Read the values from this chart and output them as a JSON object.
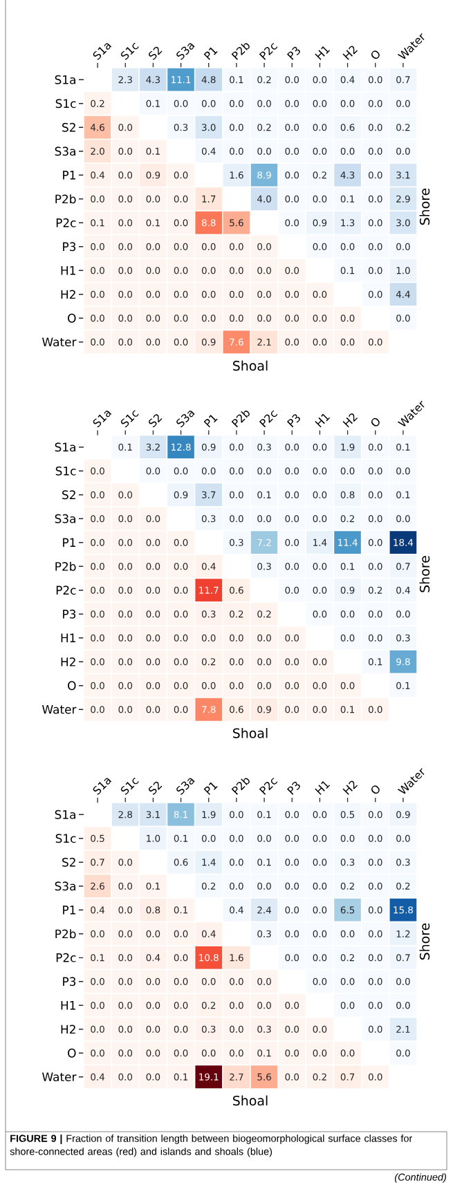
{
  "chart_data": [
    {
      "type": "heatmap",
      "xlabel": "Shoal",
      "ylabel": "Shore",
      "categories": [
        "S1a",
        "S1c",
        "S2",
        "S3a",
        "P1",
        "P2b",
        "P2c",
        "P3",
        "H1",
        "H2",
        "O",
        "Water"
      ],
      "y_categories": [
        "S1a",
        "S1c",
        "S2",
        "S3a",
        "P1",
        "P2b",
        "P2c",
        "P3",
        "H1",
        "H2",
        "O",
        "Water"
      ],
      "cells": [
        [
          null,
          2.3,
          4.3,
          11.1,
          4.8,
          0.1,
          0.2,
          0.0,
          0.0,
          0.4,
          0.0,
          0.7
        ],
        [
          0.2,
          null,
          0.1,
          0.0,
          0.0,
          0.0,
          0.0,
          0.0,
          0.0,
          0.0,
          0.0,
          0.0
        ],
        [
          4.6,
          0.0,
          null,
          0.3,
          3.0,
          0.0,
          0.2,
          0.0,
          0.0,
          0.6,
          0.0,
          0.2
        ],
        [
          2.0,
          0.0,
          0.1,
          null,
          0.4,
          0.0,
          0.0,
          0.0,
          0.0,
          0.0,
          0.0,
          0.0
        ],
        [
          0.4,
          0.0,
          0.9,
          0.0,
          null,
          1.6,
          8.9,
          0.0,
          0.2,
          4.3,
          0.0,
          3.1
        ],
        [
          0.0,
          0.0,
          0.0,
          0.0,
          1.7,
          null,
          4.0,
          0.0,
          0.0,
          0.1,
          0.0,
          2.9
        ],
        [
          0.1,
          0.0,
          0.1,
          0.0,
          8.8,
          5.6,
          null,
          0.0,
          0.9,
          1.3,
          0.0,
          3.0
        ],
        [
          0.0,
          0.0,
          0.0,
          0.0,
          0.0,
          0.0,
          0.0,
          null,
          0.0,
          0.0,
          0.0,
          0.0
        ],
        [
          0.0,
          0.0,
          0.0,
          0.0,
          0.0,
          0.0,
          0.0,
          0.0,
          null,
          0.1,
          0.0,
          1.0
        ],
        [
          0.0,
          0.0,
          0.0,
          0.0,
          0.0,
          0.0,
          0.0,
          0.0,
          0.0,
          null,
          0.0,
          4.4
        ],
        [
          0.0,
          0.0,
          0.0,
          0.0,
          0.0,
          0.0,
          0.0,
          0.0,
          0.0,
          0.0,
          null,
          0.0
        ],
        [
          0.0,
          0.0,
          0.0,
          0.0,
          0.9,
          7.6,
          2.1,
          0.0,
          0.0,
          0.0,
          0.0,
          null
        ]
      ],
      "cell_labels": [
        [
          null,
          "2.3",
          "4.3",
          "11.1",
          "4.8",
          "0.1",
          "0.2",
          "0.0",
          "0.0",
          "0.4",
          "0.0",
          "0.7"
        ],
        [
          "0.2",
          null,
          "0.1",
          "0.0",
          "0.0",
          "0.0",
          "0.0",
          "0.0",
          "0.0",
          "0.0",
          "0.0",
          "0.0"
        ],
        [
          "4.6",
          "0.0",
          null,
          "0.3",
          "3.0",
          "0.0",
          "0.2",
          "0.0",
          "0.0",
          "0.6",
          "0.0",
          "0.2"
        ],
        [
          "2.0",
          "0.0",
          "0.1",
          null,
          "0.4",
          "0.0",
          "0.0",
          "0.0",
          "0.0",
          "0.0",
          "0.0",
          "0.0"
        ],
        [
          "0.4",
          "0.0",
          "0.9",
          "0.0",
          null,
          "1.6",
          "8.9",
          "0.0",
          "0.2",
          "4.3",
          "0.0",
          "3.1"
        ],
        [
          "0.0",
          "0.0",
          "0.0",
          "0.0",
          "1.7",
          null,
          "4.0",
          "0.0",
          "0.0",
          "0.1",
          "0.0",
          "2.9"
        ],
        [
          "0.1",
          "0.0",
          "0.1",
          "0.0",
          "8.8",
          "5.6",
          null,
          "0.0",
          "0.9",
          "1.3",
          "0.0",
          "3.0"
        ],
        [
          "0.0",
          "0.0",
          "0.0",
          "0.0",
          "0.0",
          "0.0",
          "0.0",
          null,
          "0.0",
          "0.0",
          "0.0",
          "0.0"
        ],
        [
          "0.0",
          "0.0",
          "0.0",
          "0.0",
          "0.0",
          "0.0",
          "0.0",
          "0.0",
          null,
          "0.1",
          "0.0",
          "1.0"
        ],
        [
          "0.0",
          "0.0",
          "0.0",
          "0.0",
          "0.0",
          "0.0",
          "0.0",
          "0.0",
          "0.0",
          null,
          "0.0",
          "4.4"
        ],
        [
          "0.0",
          "0.0",
          "0.0",
          "0.0",
          "0.0",
          "0.0",
          "0.0",
          "0.0",
          "0.0",
          "0.0",
          null,
          "0.0"
        ],
        [
          "0.0",
          "0.0",
          "0.0",
          "0.0",
          "0.9",
          "7.6",
          "2.1",
          "0.0",
          "0.0",
          "0.0",
          "0.0",
          null
        ]
      ]
    },
    {
      "type": "heatmap",
      "xlabel": "Shoal",
      "ylabel": "Shore",
      "categories": [
        "S1a",
        "S1c",
        "S2",
        "S3a",
        "P1",
        "P2b",
        "P2c",
        "P3",
        "H1",
        "H2",
        "O",
        "Water"
      ],
      "y_categories": [
        "S1a",
        "S1c",
        "S2",
        "S3a",
        "P1",
        "P2b",
        "P2c",
        "P3",
        "H1",
        "H2",
        "O",
        "Water"
      ],
      "cells": [
        [
          null,
          0.1,
          3.2,
          12.8,
          0.9,
          0.0,
          0.3,
          0.0,
          0.0,
          1.9,
          0.0,
          0.1
        ],
        [
          0.0,
          null,
          0.0,
          0.0,
          0.0,
          0.0,
          0.0,
          0.0,
          0.0,
          0.0,
          0.0,
          0.0
        ],
        [
          0.0,
          0.0,
          null,
          0.9,
          3.7,
          0.0,
          0.1,
          0.0,
          0.0,
          0.8,
          0.0,
          0.1
        ],
        [
          0.0,
          0.0,
          0.0,
          null,
          0.3,
          0.0,
          0.0,
          0.0,
          0.0,
          0.2,
          0.0,
          0.0
        ],
        [
          0.0,
          0.0,
          0.0,
          0.0,
          null,
          0.3,
          7.2,
          0.0,
          1.4,
          11.4,
          0.0,
          18.4
        ],
        [
          0.0,
          0.0,
          0.0,
          0.0,
          0.4,
          null,
          0.3,
          0.0,
          0.0,
          0.1,
          0.0,
          0.7
        ],
        [
          0.0,
          0.0,
          0.0,
          0.0,
          11.7,
          0.6,
          null,
          0.0,
          0.0,
          0.9,
          0.2,
          0.4
        ],
        [
          0.0,
          0.0,
          0.0,
          0.0,
          0.3,
          0.2,
          0.2,
          null,
          0.0,
          0.0,
          0.0,
          0.0
        ],
        [
          0.0,
          0.0,
          0.0,
          0.0,
          0.0,
          0.0,
          0.0,
          0.0,
          null,
          0.0,
          0.0,
          0.3
        ],
        [
          0.0,
          0.0,
          0.0,
          0.0,
          0.2,
          0.0,
          0.0,
          0.0,
          0.0,
          null,
          0.1,
          9.8
        ],
        [
          0.0,
          0.0,
          0.0,
          0.0,
          0.0,
          0.0,
          0.0,
          0.0,
          0.0,
          0.0,
          null,
          0.1
        ],
        [
          0.0,
          0.0,
          0.0,
          0.0,
          7.8,
          0.6,
          0.9,
          0.0,
          0.0,
          0.1,
          0.0,
          null
        ]
      ],
      "cell_labels": [
        [
          null,
          "0.1",
          "3.2",
          "12.8",
          "0.9",
          "0.0",
          "0.3",
          "0.0",
          "0.0",
          "1.9",
          "0.0",
          "0.1"
        ],
        [
          "0.0",
          null,
          "0.0",
          "0.0",
          "0.0",
          "0.0",
          "0.0",
          "0.0",
          "0.0",
          "0.0",
          "0.0",
          "0.0"
        ],
        [
          "0.0",
          "0.0",
          null,
          "0.9",
          "3.7",
          "0.0",
          "0.1",
          "0.0",
          "0.0",
          "0.8",
          "0.0",
          "0.1"
        ],
        [
          "0.0",
          "0.0",
          "0.0",
          null,
          "0.3",
          "0.0",
          "0.0",
          "0.0",
          "0.0",
          "0.2",
          "0.0",
          "0.0"
        ],
        [
          "0.0",
          "0.0",
          "0.0",
          "0.0",
          null,
          "0.3",
          "7.2",
          "0.0",
          "1.4",
          "11.4",
          "0.0",
          "18.4"
        ],
        [
          "0.0",
          "0.0",
          "0.0",
          "0.0",
          "0.4",
          null,
          "0.3",
          "0.0",
          "0.0",
          "0.1",
          "0.0",
          "0.7"
        ],
        [
          "0.0",
          "0.0",
          "0.0",
          "0.0",
          "11.7",
          "0.6",
          null,
          "0.0",
          "0.0",
          "0.9",
          "0.2",
          "0.4"
        ],
        [
          "0.0",
          "0.0",
          "0.0",
          "0.0",
          "0.3",
          "0.2",
          "0.2",
          null,
          "0.0",
          "0.0",
          "0.0",
          "0.0"
        ],
        [
          "0.0",
          "0.0",
          "0.0",
          "0.0",
          "0.0",
          "0.0",
          "0.0",
          "0.0",
          null,
          "0.0",
          "0.0",
          "0.3"
        ],
        [
          "0.0",
          "0.0",
          "0.0",
          "0.0",
          "0.2",
          "0.0",
          "0.0",
          "0.0",
          "0.0",
          null,
          "0.1",
          "9.8"
        ],
        [
          "0.0",
          "0.0",
          "0.0",
          "0.0",
          "0.0",
          "0.0",
          "0.0",
          "0.0",
          "0.0",
          "0.0",
          null,
          "0.1"
        ],
        [
          "0.0",
          "0.0",
          "0.0",
          "0.0",
          "7.8",
          "0.6",
          "0.9",
          "0.0",
          "0.0",
          "0.1",
          "0.0",
          null
        ]
      ]
    },
    {
      "type": "heatmap",
      "xlabel": "Shoal",
      "ylabel": "Shore",
      "categories": [
        "S1a",
        "S1c",
        "S2",
        "S3a",
        "P1",
        "P2b",
        "P2c",
        "P3",
        "H1",
        "H2",
        "O",
        "Water"
      ],
      "y_categories": [
        "S1a",
        "S1c",
        "S2",
        "S3a",
        "P1",
        "P2b",
        "P2c",
        "P3",
        "H1",
        "H2",
        "O",
        "Water"
      ],
      "cells": [
        [
          null,
          2.8,
          3.1,
          8.1,
          1.9,
          0.0,
          0.1,
          0.0,
          0.0,
          0.5,
          0.0,
          0.9
        ],
        [
          0.5,
          null,
          1.0,
          0.1,
          0.0,
          0.0,
          0.0,
          0.0,
          0.0,
          0.0,
          0.0,
          0.0
        ],
        [
          0.7,
          0.0,
          null,
          0.6,
          1.4,
          0.0,
          0.1,
          0.0,
          0.0,
          0.3,
          0.0,
          0.3
        ],
        [
          2.6,
          0.0,
          0.1,
          null,
          0.2,
          0.0,
          0.0,
          0.0,
          0.0,
          0.2,
          0.0,
          0.2
        ],
        [
          0.4,
          0.0,
          0.8,
          0.1,
          null,
          0.4,
          2.4,
          0.0,
          0.0,
          6.5,
          0.0,
          15.8
        ],
        [
          0.0,
          0.0,
          0.0,
          0.0,
          0.4,
          null,
          0.3,
          0.0,
          0.0,
          0.0,
          0.0,
          1.2
        ],
        [
          0.1,
          0.0,
          0.4,
          0.0,
          10.8,
          1.6,
          null,
          0.0,
          0.0,
          0.2,
          0.0,
          0.7
        ],
        [
          0.0,
          0.0,
          0.0,
          0.0,
          0.0,
          0.0,
          0.0,
          null,
          0.0,
          0.0,
          0.0,
          0.0
        ],
        [
          0.0,
          0.0,
          0.0,
          0.0,
          0.2,
          0.0,
          0.0,
          0.0,
          null,
          0.0,
          0.0,
          0.0
        ],
        [
          0.0,
          0.0,
          0.0,
          0.0,
          0.3,
          0.0,
          0.3,
          0.0,
          0.0,
          null,
          0.0,
          2.1
        ],
        [
          0.0,
          0.0,
          0.0,
          0.0,
          0.0,
          0.0,
          0.1,
          0.0,
          0.0,
          0.0,
          null,
          0.0
        ],
        [
          0.4,
          0.0,
          0.0,
          0.1,
          19.1,
          2.7,
          5.6,
          0.0,
          0.2,
          0.7,
          0.0,
          null
        ]
      ],
      "cell_labels": [
        [
          null,
          "2.8",
          "3.1",
          "8.1",
          "1.9",
          "0.0",
          "0.1",
          "0.0",
          "0.0",
          "0.5",
          "0.0",
          "0.9"
        ],
        [
          "0.5",
          null,
          "1.0",
          "0.1",
          "0.0",
          "0.0",
          "0.0",
          "0.0",
          "0.0",
          "0.0",
          "0.0",
          "0.0"
        ],
        [
          "0.7",
          "0.0",
          null,
          "0.6",
          "1.4",
          "0.0",
          "0.1",
          "0.0",
          "0.0",
          "0.3",
          "0.0",
          "0.3"
        ],
        [
          "2.6",
          "0.0",
          "0.1",
          null,
          "0.2",
          "0.0",
          "0.0",
          "0.0",
          "0.0",
          "0.2",
          "0.0",
          "0.2"
        ],
        [
          "0.4",
          "0.0",
          "0.8",
          "0.1",
          null,
          "0.4",
          "2.4",
          "0.0",
          "0.0",
          "6.5",
          "0.0",
          "15.8"
        ],
        [
          "0.0",
          "0.0",
          "0.0",
          "0.0",
          "0.4",
          null,
          "0.3",
          "0.0",
          "0.0",
          "0.0",
          "0.0",
          "1.2"
        ],
        [
          "0.1",
          "0.0",
          "0.4",
          "0.0",
          "10.8",
          "1.6",
          null,
          "0.0",
          "0.0",
          "0.2",
          "0.0",
          "0.7"
        ],
        [
          "0.0",
          "0.0",
          "0.0",
          "0.0",
          "0.0",
          "0.0",
          "0.0",
          null,
          "0.0",
          "0.0",
          "0.0",
          "0.0"
        ],
        [
          "0.0",
          "0.0",
          "0.0",
          "0.0",
          "0.2",
          "0.0",
          "0.0",
          "0.0",
          null,
          "0.0",
          "0.0",
          "0.0"
        ],
        [
          "0.0",
          "0.0",
          "0.0",
          "0.0",
          "0.3",
          "0.0",
          "0.3",
          "0.0",
          "0.0",
          null,
          "0.0",
          "2.1"
        ],
        [
          "0.0",
          "0.0",
          "0.0",
          "0.0",
          "0.0",
          "0.0",
          "0.1",
          "0.0",
          "0.0",
          "0.0",
          null,
          "0.0"
        ],
        [
          "0.4",
          "0.0",
          "0.0",
          "0.1",
          "19.1",
          "2.7",
          "5.6",
          "0.0",
          "0.2",
          "0.7",
          "0.0",
          null
        ]
      ],
      "annotations": [
        "**FIGURE 9 |** Fraction of transition length between biogeomorphological surface classes for shore-connected areas (red) and islands and shoals (blue)",
        "(Continued)"
      ]
    }
  ]
}
